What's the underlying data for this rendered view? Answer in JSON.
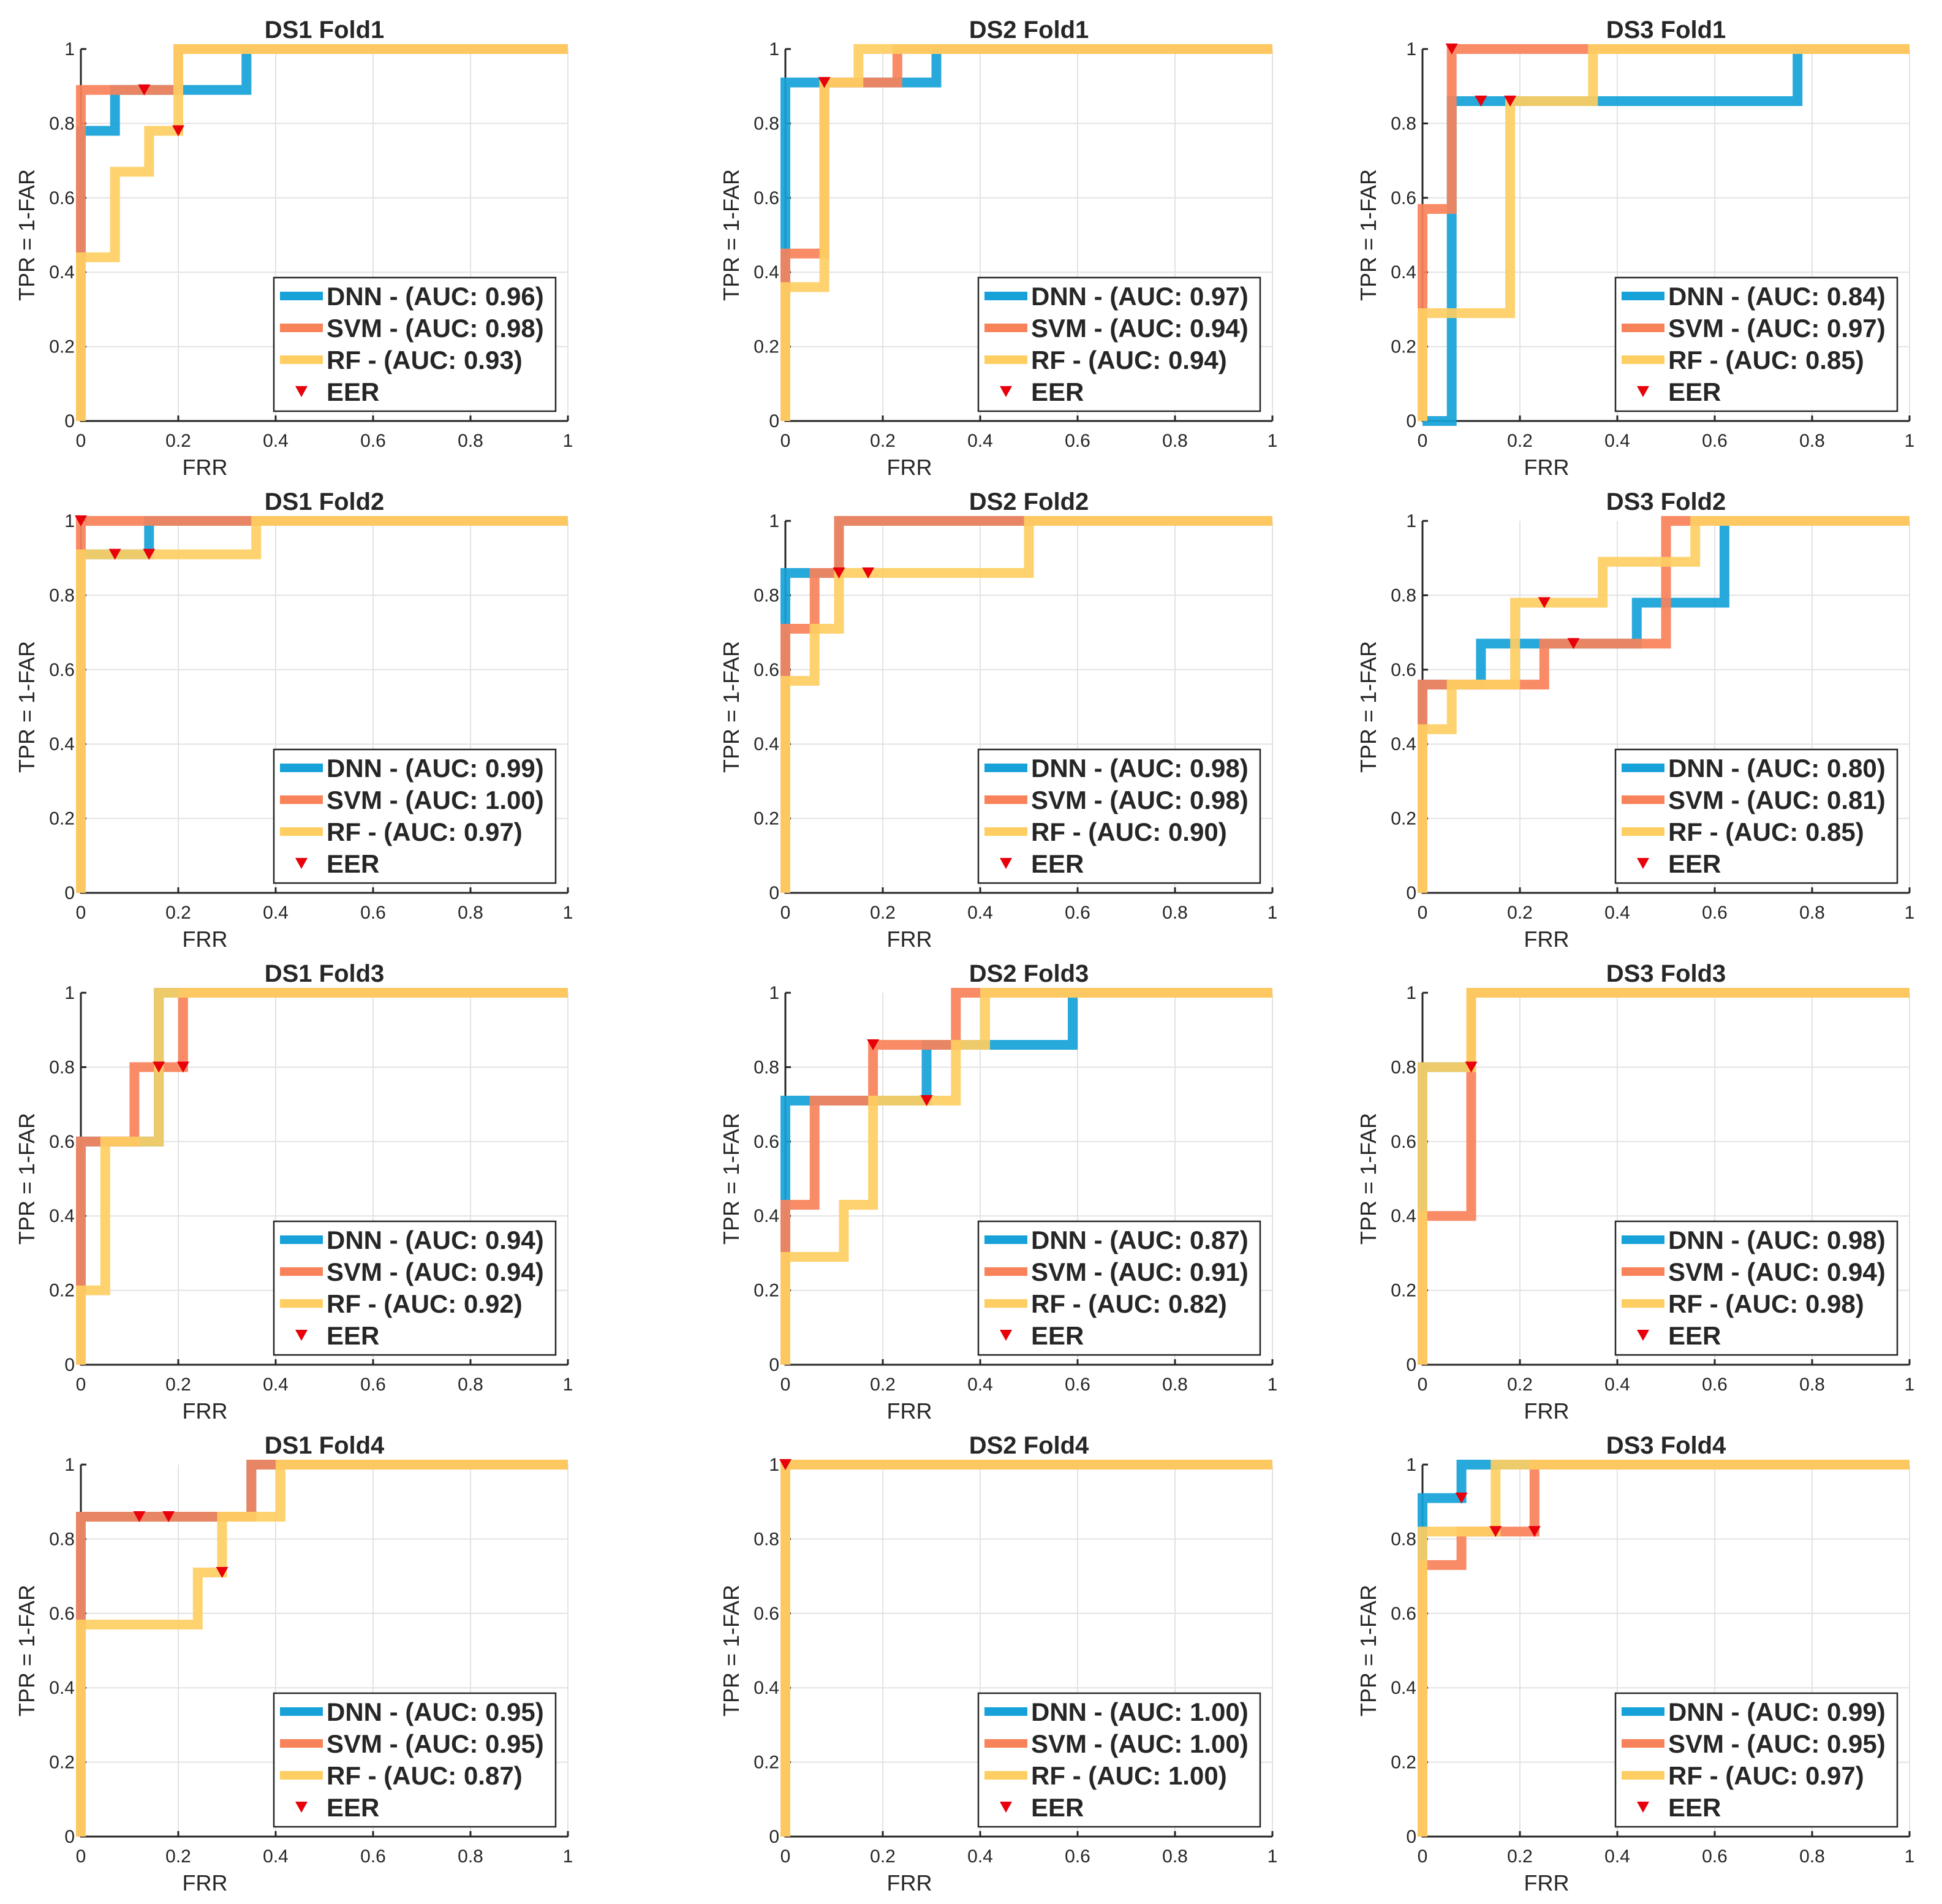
{
  "figure": {
    "xlabel": "FRR",
    "ylabel": "TPR = 1-FAR",
    "ticks": [
      0,
      0.2,
      0.4,
      0.6,
      0.8,
      1
    ],
    "tick_labels": [
      "0",
      "0.2",
      "0.4",
      "0.6",
      "0.8",
      "1"
    ],
    "colors": {
      "DNN": "#16a2d8",
      "SVM": "#f8825a",
      "RF": "#fece62",
      "EER": "#e8000b"
    }
  },
  "chart_data": [
    {
      "type": "line",
      "title": "DS1 Fold1",
      "xlabel": "FRR",
      "ylabel": "TPR = 1-FAR",
      "xlim": [
        0,
        1
      ],
      "ylim": [
        0,
        1
      ],
      "grid": true,
      "legend_position": "bottom-right",
      "legend": [
        "DNN - (AUC: 0.96)",
        "SVM - (AUC: 0.98)",
        "RF - (AUC: 0.93)",
        "EER"
      ],
      "series": [
        {
          "name": "DNN",
          "auc": 0.96,
          "x": [
            0,
            0,
            0.07,
            0.07,
            0.2,
            0.2,
            0.34,
            0.34,
            1
          ],
          "y": [
            0,
            0.78,
            0.78,
            0.89,
            0.89,
            0.89,
            0.89,
            1,
            1
          ]
        },
        {
          "name": "SVM",
          "auc": 0.98,
          "x": [
            0,
            0,
            0.2,
            0.2,
            1
          ],
          "y": [
            0,
            0.89,
            0.89,
            1,
            1
          ]
        },
        {
          "name": "RF",
          "auc": 0.93,
          "x": [
            0,
            0,
            0.07,
            0.07,
            0.14,
            0.14,
            0.2,
            0.2,
            1
          ],
          "y": [
            0,
            0.44,
            0.44,
            0.67,
            0.67,
            0.78,
            0.78,
            1,
            1
          ]
        }
      ],
      "eer_points": [
        [
          0.13,
          0.89
        ],
        [
          0.2,
          0.78
        ]
      ]
    },
    {
      "type": "line",
      "title": "DS2 Fold1",
      "xlabel": "FRR",
      "ylabel": "TPR = 1-FAR",
      "xlim": [
        0,
        1
      ],
      "ylim": [
        0,
        1
      ],
      "grid": true,
      "legend_position": "bottom-right",
      "legend": [
        "DNN - (AUC: 0.97)",
        "SVM - (AUC: 0.94)",
        "RF - (AUC: 0.94)",
        "EER"
      ],
      "series": [
        {
          "name": "DNN",
          "auc": 0.97,
          "x": [
            0,
            0,
            0.31,
            0.31,
            1
          ],
          "y": [
            0,
            0.91,
            0.91,
            1,
            1
          ]
        },
        {
          "name": "SVM",
          "auc": 0.94,
          "x": [
            0,
            0,
            0.08,
            0.08,
            0.23,
            0.23,
            1
          ],
          "y": [
            0,
            0.45,
            0.45,
            0.91,
            0.91,
            1,
            1
          ]
        },
        {
          "name": "RF",
          "auc": 0.94,
          "x": [
            0,
            0,
            0.08,
            0.08,
            0.15,
            0.15,
            1
          ],
          "y": [
            0,
            0.36,
            0.36,
            0.91,
            0.91,
            1,
            1
          ]
        }
      ],
      "eer_points": [
        [
          0.08,
          0.91
        ]
      ]
    },
    {
      "type": "line",
      "title": "DS3 Fold1",
      "xlabel": "FRR",
      "ylabel": "TPR = 1-FAR",
      "xlim": [
        0,
        1
      ],
      "ylim": [
        0,
        1
      ],
      "grid": true,
      "legend_position": "bottom-right",
      "legend": [
        "DNN - (AUC: 0.84)",
        "SVM - (AUC: 0.97)",
        "RF - (AUC: 0.85)",
        "EER"
      ],
      "series": [
        {
          "name": "DNN",
          "auc": 0.84,
          "x": [
            0,
            0.06,
            0.06,
            0.77,
            0.77,
            1
          ],
          "y": [
            0,
            0,
            0.86,
            0.86,
            1,
            1
          ]
        },
        {
          "name": "SVM",
          "auc": 0.97,
          "x": [
            0,
            0,
            0.06,
            0.06,
            1
          ],
          "y": [
            0,
            0.57,
            0.57,
            1,
            1
          ]
        },
        {
          "name": "RF",
          "auc": 0.85,
          "x": [
            0,
            0,
            0.18,
            0.18,
            0.35,
            0.35,
            1
          ],
          "y": [
            0,
            0.29,
            0.29,
            0.86,
            0.86,
            1,
            1
          ]
        }
      ],
      "eer_points": [
        [
          0.06,
          1
        ],
        [
          0.12,
          0.86
        ],
        [
          0.18,
          0.86
        ]
      ]
    },
    {
      "type": "line",
      "title": "DS1 Fold2",
      "xlabel": "FRR",
      "ylabel": "TPR = 1-FAR",
      "xlim": [
        0,
        1
      ],
      "ylim": [
        0,
        1
      ],
      "grid": true,
      "legend_position": "bottom-right",
      "legend": [
        "DNN - (AUC: 0.99)",
        "SVM - (AUC: 1.00)",
        "RF - (AUC: 0.97)",
        "EER"
      ],
      "series": [
        {
          "name": "DNN",
          "auc": 0.99,
          "x": [
            0,
            0,
            0.14,
            0.14,
            1
          ],
          "y": [
            0,
            0.91,
            0.91,
            1,
            1
          ]
        },
        {
          "name": "SVM",
          "auc": 1.0,
          "x": [
            0,
            0,
            1
          ],
          "y": [
            0,
            1,
            1
          ]
        },
        {
          "name": "RF",
          "auc": 0.97,
          "x": [
            0,
            0,
            0.36,
            0.36,
            1
          ],
          "y": [
            0,
            0.91,
            0.91,
            1,
            1
          ]
        }
      ],
      "eer_points": [
        [
          0,
          1
        ],
        [
          0.07,
          0.91
        ],
        [
          0.14,
          0.91
        ]
      ]
    },
    {
      "type": "line",
      "title": "DS2 Fold2",
      "xlabel": "FRR",
      "ylabel": "TPR = 1-FAR",
      "xlim": [
        0,
        1
      ],
      "ylim": [
        0,
        1
      ],
      "grid": true,
      "legend_position": "bottom-right",
      "legend": [
        "DNN - (AUC: 0.98)",
        "SVM - (AUC: 0.98)",
        "RF - (AUC: 0.90)",
        "EER"
      ],
      "series": [
        {
          "name": "DNN",
          "auc": 0.98,
          "x": [
            0,
            0,
            0.11,
            0.11,
            1
          ],
          "y": [
            0,
            0.86,
            0.86,
            1,
            1
          ]
        },
        {
          "name": "SVM",
          "auc": 0.98,
          "x": [
            0,
            0,
            0.06,
            0.06,
            0.11,
            0.11,
            1
          ],
          "y": [
            0,
            0.71,
            0.71,
            0.86,
            0.86,
            1,
            1
          ]
        },
        {
          "name": "RF",
          "auc": 0.9,
          "x": [
            0,
            0,
            0.06,
            0.06,
            0.11,
            0.11,
            0.5,
            0.5,
            1
          ],
          "y": [
            0,
            0.57,
            0.57,
            0.71,
            0.71,
            0.86,
            0.86,
            1,
            1
          ]
        }
      ],
      "eer_points": [
        [
          0.11,
          0.86
        ],
        [
          0.17,
          0.86
        ]
      ]
    },
    {
      "type": "line",
      "title": "DS3 Fold2",
      "xlabel": "FRR",
      "ylabel": "TPR = 1-FAR",
      "xlim": [
        0,
        1
      ],
      "ylim": [
        0,
        1
      ],
      "grid": true,
      "legend_position": "bottom-right",
      "legend": [
        "DNN - (AUC: 0.80)",
        "SVM - (AUC: 0.81)",
        "RF - (AUC: 0.85)",
        "EER"
      ],
      "series": [
        {
          "name": "DNN",
          "auc": 0.8,
          "x": [
            0,
            0,
            0.12,
            0.12,
            0.44,
            0.44,
            0.62,
            0.62,
            1
          ],
          "y": [
            0,
            0.56,
            0.56,
            0.67,
            0.67,
            0.78,
            0.78,
            1,
            1
          ]
        },
        {
          "name": "SVM",
          "auc": 0.81,
          "x": [
            0,
            0,
            0.25,
            0.25,
            0.5,
            0.5,
            1
          ],
          "y": [
            0,
            0.56,
            0.56,
            0.67,
            0.67,
            1,
            1
          ]
        },
        {
          "name": "RF",
          "auc": 0.85,
          "x": [
            0,
            0,
            0.06,
            0.06,
            0.19,
            0.19,
            0.37,
            0.37,
            0.56,
            0.56,
            1
          ],
          "y": [
            0,
            0.44,
            0.44,
            0.56,
            0.56,
            0.78,
            0.78,
            0.89,
            0.89,
            1,
            1
          ]
        }
      ],
      "eer_points": [
        [
          0.25,
          0.78
        ],
        [
          0.31,
          0.67
        ]
      ]
    },
    {
      "type": "line",
      "title": "DS1 Fold3",
      "xlabel": "FRR",
      "ylabel": "TPR = 1-FAR",
      "xlim": [
        0,
        1
      ],
      "ylim": [
        0,
        1
      ],
      "grid": true,
      "legend_position": "bottom-right",
      "legend": [
        "DNN - (AUC: 0.94)",
        "SVM - (AUC: 0.94)",
        "RF - (AUC: 0.92)",
        "EER"
      ],
      "series": [
        {
          "name": "DNN",
          "auc": 0.94,
          "x": [
            0,
            0,
            0.16,
            0.16,
            1
          ],
          "y": [
            0,
            0.6,
            0.6,
            1,
            1
          ]
        },
        {
          "name": "SVM",
          "auc": 0.94,
          "x": [
            0,
            0,
            0.11,
            0.11,
            0.21,
            0.21,
            1
          ],
          "y": [
            0,
            0.6,
            0.6,
            0.8,
            0.8,
            1,
            1
          ]
        },
        {
          "name": "RF",
          "auc": 0.92,
          "x": [
            0,
            0,
            0.05,
            0.05,
            0.16,
            0.16,
            1
          ],
          "y": [
            0,
            0.2,
            0.2,
            0.6,
            0.6,
            1,
            1
          ]
        }
      ],
      "eer_points": [
        [
          0.16,
          0.8
        ],
        [
          0.21,
          0.8
        ]
      ]
    },
    {
      "type": "line",
      "title": "DS2 Fold3",
      "xlabel": "FRR",
      "ylabel": "TPR = 1-FAR",
      "xlim": [
        0,
        1
      ],
      "ylim": [
        0,
        1
      ],
      "grid": true,
      "legend_position": "bottom-right",
      "legend": [
        "DNN - (AUC: 0.87)",
        "SVM - (AUC: 0.91)",
        "RF - (AUC: 0.82)",
        "EER"
      ],
      "series": [
        {
          "name": "DNN",
          "auc": 0.87,
          "x": [
            0,
            0,
            0.29,
            0.29,
            0.59,
            0.59,
            1
          ],
          "y": [
            0,
            0.71,
            0.71,
            0.86,
            0.86,
            1,
            1
          ]
        },
        {
          "name": "SVM",
          "auc": 0.91,
          "x": [
            0,
            0,
            0.06,
            0.06,
            0.18,
            0.18,
            0.35,
            0.35,
            1
          ],
          "y": [
            0,
            0.43,
            0.43,
            0.71,
            0.71,
            0.86,
            0.86,
            1,
            1
          ]
        },
        {
          "name": "RF",
          "auc": 0.82,
          "x": [
            0,
            0,
            0.12,
            0.12,
            0.18,
            0.18,
            0.35,
            0.35,
            0.41,
            0.41,
            1
          ],
          "y": [
            0,
            0.29,
            0.29,
            0.43,
            0.43,
            0.71,
            0.71,
            0.86,
            0.86,
            1,
            1
          ]
        }
      ],
      "eer_points": [
        [
          0.18,
          0.86
        ],
        [
          0.29,
          0.71
        ]
      ]
    },
    {
      "type": "line",
      "title": "DS3 Fold3",
      "xlabel": "FRR",
      "ylabel": "TPR = 1-FAR",
      "xlim": [
        0,
        1
      ],
      "ylim": [
        0,
        1
      ],
      "grid": true,
      "legend_position": "bottom-right",
      "legend": [
        "DNN - (AUC: 0.98)",
        "SVM - (AUC: 0.94)",
        "RF - (AUC: 0.98)",
        "EER"
      ],
      "series": [
        {
          "name": "DNN",
          "auc": 0.98,
          "x": [
            0,
            0,
            0.1,
            0.1,
            1
          ],
          "y": [
            0,
            0.8,
            0.8,
            1,
            1
          ]
        },
        {
          "name": "SVM",
          "auc": 0.94,
          "x": [
            0,
            0,
            0.1,
            0.1,
            1
          ],
          "y": [
            0,
            0.4,
            0.4,
            1,
            1
          ]
        },
        {
          "name": "RF",
          "auc": 0.98,
          "x": [
            0,
            0,
            0.1,
            0.1,
            1
          ],
          "y": [
            0,
            0.8,
            0.8,
            1,
            1
          ]
        }
      ],
      "eer_points": [
        [
          0.1,
          0.8
        ]
      ]
    },
    {
      "type": "line",
      "title": "DS1 Fold4",
      "xlabel": "FRR",
      "ylabel": "TPR = 1-FAR",
      "xlim": [
        0,
        1
      ],
      "ylim": [
        0,
        1
      ],
      "grid": true,
      "legend_position": "bottom-right",
      "legend": [
        "DNN - (AUC: 0.95)",
        "SVM - (AUC: 0.95)",
        "RF - (AUC: 0.87)",
        "EER"
      ],
      "series": [
        {
          "name": "DNN",
          "auc": 0.95,
          "x": [
            0,
            0,
            0.35,
            0.35,
            1
          ],
          "y": [
            0,
            0.86,
            0.86,
            1,
            1
          ]
        },
        {
          "name": "SVM",
          "auc": 0.95,
          "x": [
            0,
            0,
            0.35,
            0.35,
            1
          ],
          "y": [
            0,
            0.86,
            0.86,
            1,
            1
          ]
        },
        {
          "name": "RF",
          "auc": 0.87,
          "x": [
            0,
            0,
            0.24,
            0.24,
            0.29,
            0.29,
            0.41,
            0.41,
            1
          ],
          "y": [
            0,
            0.57,
            0.57,
            0.71,
            0.71,
            0.86,
            0.86,
            1,
            1
          ]
        }
      ],
      "eer_points": [
        [
          0.12,
          0.86
        ],
        [
          0.18,
          0.86
        ],
        [
          0.29,
          0.71
        ]
      ]
    },
    {
      "type": "line",
      "title": "DS2 Fold4",
      "xlabel": "FRR",
      "ylabel": "TPR = 1-FAR",
      "xlim": [
        0,
        1
      ],
      "ylim": [
        0,
        1
      ],
      "grid": true,
      "legend_position": "bottom-right",
      "legend": [
        "DNN - (AUC: 1.00)",
        "SVM - (AUC: 1.00)",
        "RF - (AUC: 1.00)",
        "EER"
      ],
      "series": [
        {
          "name": "DNN",
          "auc": 1.0,
          "x": [
            0,
            0,
            1
          ],
          "y": [
            0,
            1,
            1
          ]
        },
        {
          "name": "SVM",
          "auc": 1.0,
          "x": [
            0,
            0,
            1
          ],
          "y": [
            0,
            1,
            1
          ]
        },
        {
          "name": "RF",
          "auc": 1.0,
          "x": [
            0,
            0,
            1
          ],
          "y": [
            0,
            1,
            1
          ]
        }
      ],
      "eer_points": [
        [
          0,
          1
        ]
      ]
    },
    {
      "type": "line",
      "title": "DS3 Fold4",
      "xlabel": "FRR",
      "ylabel": "TPR = 1-FAR",
      "xlim": [
        0,
        1
      ],
      "ylim": [
        0,
        1
      ],
      "grid": true,
      "legend_position": "bottom-right",
      "legend": [
        "DNN - (AUC: 0.99)",
        "SVM - (AUC: 0.95)",
        "RF - (AUC: 0.97)",
        "EER"
      ],
      "series": [
        {
          "name": "DNN",
          "auc": 0.99,
          "x": [
            0,
            0,
            0.08,
            0.08,
            1
          ],
          "y": [
            0,
            0.91,
            0.91,
            1,
            1
          ]
        },
        {
          "name": "SVM",
          "auc": 0.95,
          "x": [
            0,
            0,
            0.08,
            0.08,
            0.23,
            0.23,
            1
          ],
          "y": [
            0,
            0.73,
            0.73,
            0.82,
            0.82,
            1,
            1
          ]
        },
        {
          "name": "RF",
          "auc": 0.97,
          "x": [
            0,
            0,
            0.15,
            0.15,
            1
          ],
          "y": [
            0,
            0.82,
            0.82,
            1,
            1
          ]
        }
      ],
      "eer_points": [
        [
          0.08,
          0.91
        ],
        [
          0.15,
          0.82
        ],
        [
          0.23,
          0.82
        ]
      ]
    }
  ]
}
